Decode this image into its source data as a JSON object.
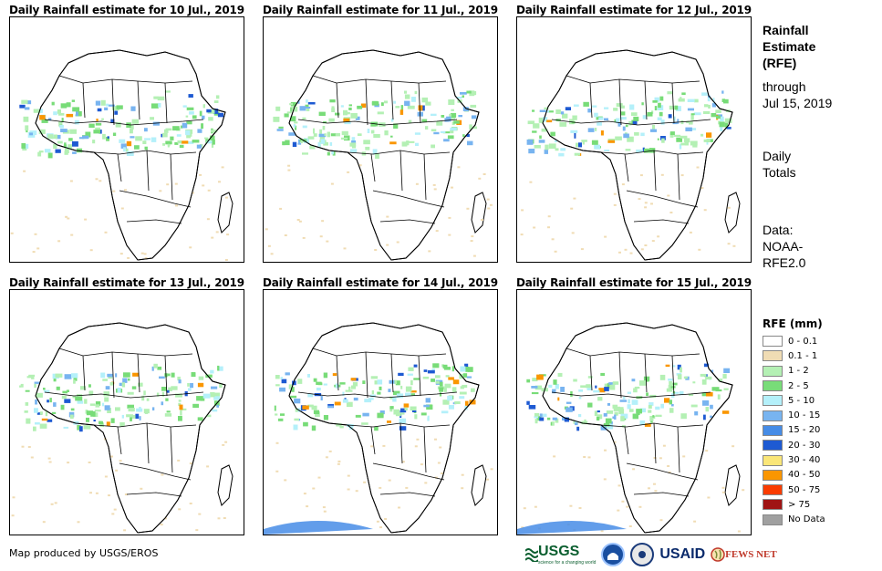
{
  "panels": [
    {
      "title": "Daily Rainfall estimate for 10 Jul., 2019"
    },
    {
      "title": "Daily Rainfall estimate for 11 Jul., 2019"
    },
    {
      "title": "Daily Rainfall estimate for 12 Jul., 2019"
    },
    {
      "title": "Daily Rainfall estimate for 13 Jul., 2019"
    },
    {
      "title": "Daily Rainfall estimate for 14 Jul., 2019"
    },
    {
      "title": "Daily Rainfall estimate for 15 Jul., 2019"
    }
  ],
  "side": {
    "title_lines": [
      "Rainfall",
      "Estimate",
      "(RFE)"
    ],
    "through_lines": [
      "through",
      "Jul 15, 2019"
    ],
    "totals_lines": [
      "Daily",
      "Totals"
    ],
    "data_lines": [
      "Data:",
      "NOAA-",
      "RFE2.0"
    ]
  },
  "legend": {
    "title": "RFE (mm)",
    "items": [
      {
        "label": "0 - 0.1",
        "color": "#ffffff"
      },
      {
        "label": "0.1 - 1",
        "color": "#f0dcb4"
      },
      {
        "label": "1 - 2",
        "color": "#b4f0b4"
      },
      {
        "label": "2 - 5",
        "color": "#78dc78"
      },
      {
        "label": "5 - 10",
        "color": "#b4f0fa"
      },
      {
        "label": "10 - 15",
        "color": "#78b4f0"
      },
      {
        "label": "15 - 20",
        "color": "#468ce6"
      },
      {
        "label": "20 - 30",
        "color": "#1e5ad2"
      },
      {
        "label": "30 - 40",
        "color": "#fae678"
      },
      {
        "label": "40 - 50",
        "color": "#fa9600"
      },
      {
        "label": "50 - 75",
        "color": "#fa3c00"
      },
      {
        "label": "> 75",
        "color": "#a01414"
      },
      {
        "label": "No Data",
        "color": "#a0a0a0"
      }
    ]
  },
  "credit": "Map produced by USGS/EROS",
  "logos": {
    "usgs": "USGS",
    "usgs_tagline": "science for a changing world",
    "usaid": "USAID",
    "fews": "FEWS NET"
  }
}
